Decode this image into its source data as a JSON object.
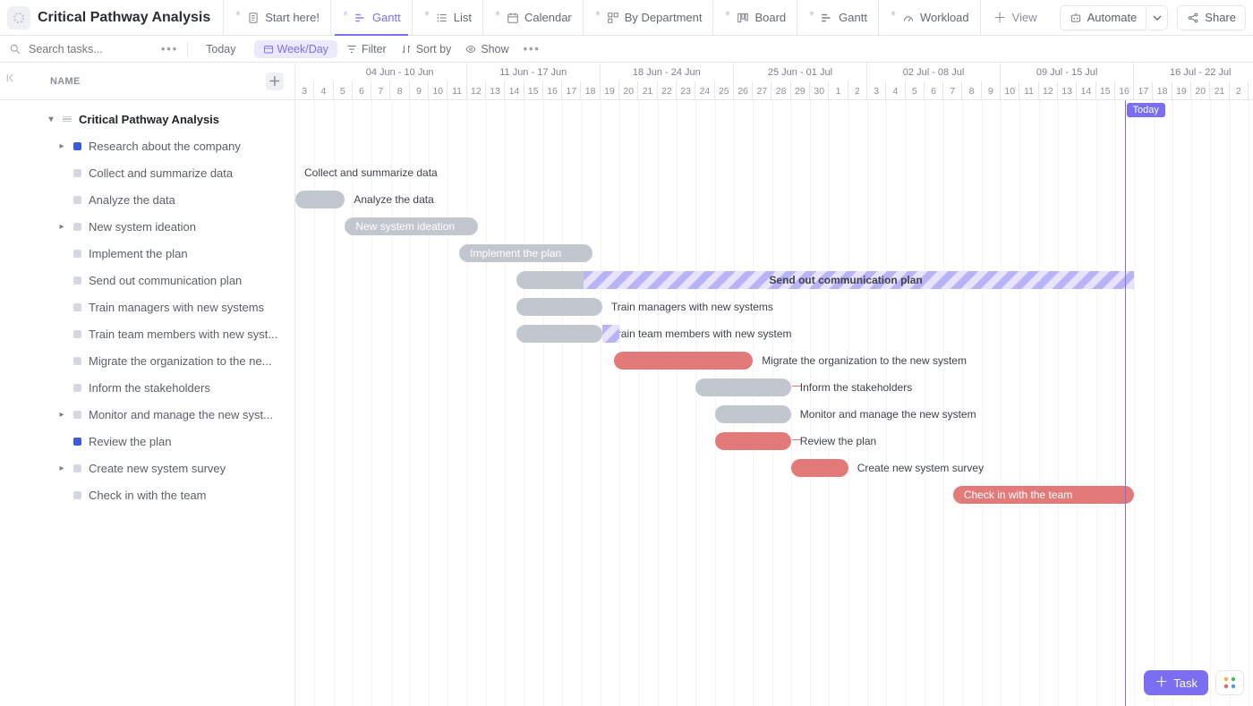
{
  "title": "Critical Pathway Analysis",
  "topbar": {
    "automate": "Automate",
    "share": "Share",
    "add_view": "View"
  },
  "views": [
    {
      "key": "start",
      "label": "Start here!",
      "icon": "doc"
    },
    {
      "key": "gantt1",
      "label": "Gantt",
      "icon": "gantt",
      "active": true
    },
    {
      "key": "list",
      "label": "List",
      "icon": "list"
    },
    {
      "key": "cal",
      "label": "Calendar",
      "icon": "calendar"
    },
    {
      "key": "dept",
      "label": "By Department",
      "icon": "dept"
    },
    {
      "key": "board",
      "label": "Board",
      "icon": "board"
    },
    {
      "key": "gantt2",
      "label": "Gantt",
      "icon": "gantt"
    },
    {
      "key": "workload",
      "label": "Workload",
      "icon": "workload"
    }
  ],
  "toolbar": {
    "search_placeholder": "Search tasks...",
    "today": "Today",
    "weekday": "Week/Day",
    "filter": "Filter",
    "sortby": "Sort by",
    "show": "Show"
  },
  "left": {
    "header": "NAME",
    "root": "Critical Pathway Analysis"
  },
  "timeline": {
    "start_day_index": 0,
    "today_index": 43.5,
    "today_label": "Today",
    "weeks": [
      {
        "label": "04 Jun - 10 Jun",
        "start": 2,
        "span": 7
      },
      {
        "label": "11 Jun - 17 Jun",
        "start": 9,
        "span": 7
      },
      {
        "label": "18 Jun - 24 Jun",
        "start": 16,
        "span": 7
      },
      {
        "label": "25 Jun - 01 Jul",
        "start": 23,
        "span": 7
      },
      {
        "label": "02 Jul - 08 Jul",
        "start": 30,
        "span": 7
      },
      {
        "label": "09 Jul - 15 Jul",
        "start": 37,
        "span": 7
      },
      {
        "label": "16 Jul - 22 Jul",
        "start": 44,
        "span": 7
      }
    ],
    "days": [
      "3",
      "4",
      "5",
      "6",
      "7",
      "8",
      "9",
      "10",
      "11",
      "12",
      "13",
      "14",
      "15",
      "16",
      "17",
      "18",
      "19",
      "20",
      "21",
      "22",
      "23",
      "24",
      "25",
      "26",
      "27",
      "28",
      "29",
      "30",
      "1",
      "2",
      "3",
      "4",
      "5",
      "6",
      "7",
      "8",
      "9",
      "10",
      "11",
      "12",
      "13",
      "14",
      "15",
      "16",
      "17",
      "18",
      "19",
      "20",
      "21",
      "2"
    ]
  },
  "tasks": [
    {
      "id": "research",
      "label": "Research about the company",
      "indent": 2,
      "caret": true,
      "status": "blue",
      "bar": null
    },
    {
      "id": "collect",
      "label": "Collect and summarize data",
      "indent": 2,
      "status": "grey",
      "bar": {
        "start": -3,
        "span": 3,
        "style": "grey",
        "label_side": "right"
      }
    },
    {
      "id": "analyze",
      "label": "Analyze the data",
      "indent": 2,
      "status": "grey",
      "bar": {
        "start": 0,
        "span": 2.6,
        "style": "grey",
        "label_side": "right"
      },
      "dep_from": "collect"
    },
    {
      "id": "ideation",
      "label": "New system ideation",
      "indent": 2,
      "caret": true,
      "status": "grey",
      "bar": {
        "start": 2.6,
        "span": 7,
        "style": "grey",
        "label_inside": true
      },
      "dep_from": "analyze"
    },
    {
      "id": "implement",
      "label": "Implement the plan",
      "indent": 2,
      "status": "grey",
      "bar": {
        "start": 8.6,
        "span": 7,
        "style": "grey",
        "label_inside": true
      },
      "dep_from": "ideation"
    },
    {
      "id": "commsplan",
      "label": "Send out communication plan",
      "indent": 2,
      "status": "grey",
      "bar": {
        "start": 11.6,
        "span": 3.5,
        "style": "grey"
      },
      "stripe_ext": {
        "start": 15.1,
        "end": 44
      },
      "label_over_stripe": true,
      "dep_from": "implement"
    },
    {
      "id": "trainmgr",
      "label": "Train managers with new systems",
      "indent": 2,
      "status": "grey",
      "bar": {
        "start": 11.6,
        "span": 4.5,
        "style": "grey",
        "label_side": "right"
      },
      "dep_from": "implement"
    },
    {
      "id": "trainteam",
      "label": "Train team members with new syst...",
      "indent": 2,
      "status": "grey",
      "full_label": "Train team members with new system",
      "bar": {
        "start": 11.6,
        "span": 4.5,
        "style": "grey",
        "label_side": "right"
      },
      "overlay": {
        "start": 16.1,
        "span": 0.9
      },
      "dep_from": "implement"
    },
    {
      "id": "migrate",
      "label": "Migrate the organization to the ne...",
      "indent": 2,
      "status": "grey",
      "full_label": "Migrate the organization to the new system",
      "bar": {
        "start": 16.7,
        "span": 7.3,
        "style": "red",
        "label_side": "right"
      },
      "dep_from": "trainteam",
      "dep_color": "red"
    },
    {
      "id": "inform",
      "label": "Inform the stakeholders",
      "indent": 2,
      "status": "grey",
      "bar": {
        "start": 21,
        "span": 5,
        "style": "grey",
        "label_side": "right"
      },
      "dep_from": "migrate",
      "dep_color": "red",
      "tail_right": true
    },
    {
      "id": "monitor",
      "label": "Monitor and manage the new syst...",
      "indent": 2,
      "caret": true,
      "status": "grey",
      "full_label": "Monitor and manage the new system",
      "bar": {
        "start": 22,
        "span": 4,
        "style": "grey",
        "label_side": "right"
      },
      "dep_from": "migrate",
      "dep_color": "red"
    },
    {
      "id": "review",
      "label": "Review the plan",
      "indent": 2,
      "status": "blue",
      "bar": {
        "start": 22,
        "span": 4,
        "style": "red",
        "label_side": "right"
      },
      "dep_from": "migrate",
      "dep_color": "red",
      "tail_right": true
    },
    {
      "id": "survey",
      "label": "Create new system survey",
      "indent": 2,
      "caret": true,
      "status": "grey",
      "bar": {
        "start": 26,
        "span": 3,
        "style": "red",
        "label_side": "right"
      },
      "dep_from": "review",
      "dep_color": "red"
    },
    {
      "id": "checkin",
      "label": "Check in with the team",
      "indent": 2,
      "status": "grey",
      "bar": {
        "start": 34.5,
        "span": 9.5,
        "style": "red",
        "label_inside": true
      }
    }
  ],
  "fab": {
    "task": "Task"
  },
  "colors": {
    "purple": "#7a6ff0",
    "red": "#e37a7a",
    "bar_grey": "#c2c6ce",
    "border": "#e7e6eb",
    "stripe_a": "#b8b2f6",
    "stripe_b": "#e7e3fb"
  }
}
